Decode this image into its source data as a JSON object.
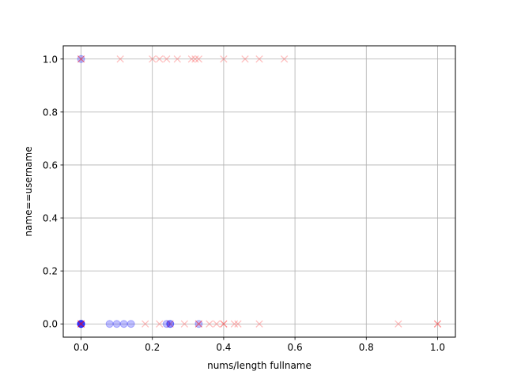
{
  "chart_data": {
    "type": "scatter",
    "title": "",
    "xlabel": "nums/length fullname",
    "ylabel": "name==username",
    "xlim": [
      -0.05,
      1.05
    ],
    "ylim": [
      -0.05,
      1.05
    ],
    "xticks": [
      0.0,
      0.2,
      0.4,
      0.6,
      0.8,
      1.0
    ],
    "yticks": [
      0.0,
      0.2,
      0.4,
      0.6,
      0.8,
      1.0
    ],
    "xtick_labels": [
      "0.0",
      "0.2",
      "0.4",
      "0.6",
      "0.8",
      "1.0"
    ],
    "ytick_labels": [
      "0.0",
      "0.2",
      "0.4",
      "0.6",
      "0.8",
      "1.0"
    ],
    "grid": true,
    "series": [
      {
        "marker": "o",
        "color": "#0000ff",
        "alpha": 0.25,
        "points": [
          [
            0.0,
            0.0
          ],
          [
            0.0,
            0.0
          ],
          [
            0.0,
            0.0
          ],
          [
            0.0,
            0.0
          ],
          [
            0.0,
            0.0
          ],
          [
            0.08,
            0.0
          ],
          [
            0.1,
            0.0
          ],
          [
            0.12,
            0.0
          ],
          [
            0.14,
            0.0
          ],
          [
            0.24,
            0.0
          ],
          [
            0.25,
            0.0
          ],
          [
            0.25,
            0.0
          ],
          [
            0.33,
            0.0
          ],
          [
            0.0,
            1.0
          ]
        ]
      },
      {
        "marker": "x",
        "color": "#ff0000",
        "alpha": 0.25,
        "points": [
          [
            0.0,
            1.0
          ],
          [
            0.0,
            1.0
          ],
          [
            0.11,
            1.0
          ],
          [
            0.2,
            1.0
          ],
          [
            0.22,
            1.0
          ],
          [
            0.24,
            1.0
          ],
          [
            0.27,
            1.0
          ],
          [
            0.31,
            1.0
          ],
          [
            0.32,
            1.0
          ],
          [
            0.33,
            1.0
          ],
          [
            0.4,
            1.0
          ],
          [
            0.46,
            1.0
          ],
          [
            0.5,
            1.0
          ],
          [
            0.57,
            1.0
          ],
          [
            0.0,
            0.0
          ],
          [
            0.0,
            0.0
          ],
          [
            0.0,
            0.0
          ],
          [
            0.18,
            0.0
          ],
          [
            0.22,
            0.0
          ],
          [
            0.25,
            0.0
          ],
          [
            0.29,
            0.0
          ],
          [
            0.33,
            0.0
          ],
          [
            0.33,
            0.0
          ],
          [
            0.36,
            0.0
          ],
          [
            0.38,
            0.0
          ],
          [
            0.4,
            0.0
          ],
          [
            0.4,
            0.0
          ],
          [
            0.43,
            0.0
          ],
          [
            0.44,
            0.0
          ],
          [
            0.5,
            0.0
          ],
          [
            0.89,
            0.0
          ],
          [
            1.0,
            0.0
          ],
          [
            1.0,
            0.0
          ]
        ]
      }
    ]
  }
}
